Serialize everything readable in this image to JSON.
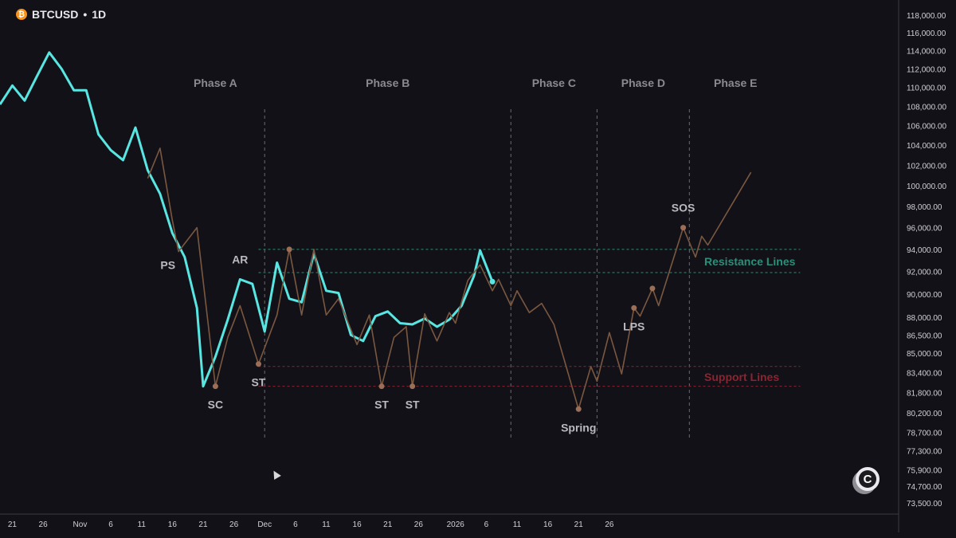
{
  "header": {
    "symbol": "BTCUSD",
    "separator": "•",
    "interval": "1D",
    "coin_icon": "bitcoin-icon"
  },
  "colors": {
    "background": "#131118",
    "price_line": "#58e6e2",
    "schematic": "#7a5840",
    "event_dot": "#9b6e55",
    "phase_label": "#8a8a90",
    "event_label": "#b9b9bf",
    "resistance": "#2a8f78",
    "support": "#8c2430",
    "axis_text": "#d0d0d6",
    "divider": "#6a6a70"
  },
  "chart_data": {
    "type": "line",
    "y_axis_ticks": [
      "118,000.00",
      "116,000.00",
      "114,000.00",
      "112,000.00",
      "110,000.00",
      "108,000.00",
      "106,000.00",
      "104,000.00",
      "102,000.00",
      "100,000.00",
      "98,000.00",
      "96,000.00",
      "94,000.00",
      "92,000.00",
      "90,000.00",
      "88,000.00",
      "86,500.00",
      "85,000.00",
      "83,400.00",
      "81,800.00",
      "80,200.00",
      "78,700.00",
      "77,300.00",
      "75,900.00",
      "74,700.00",
      "73,500.00"
    ],
    "y_scale": "log",
    "ylim": [
      72700,
      119000
    ],
    "x_axis_ticks": [
      "21",
      "26",
      "Nov",
      "6",
      "11",
      "16",
      "21",
      "26",
      "Dec",
      "6",
      "11",
      "16",
      "21",
      "26",
      "2026",
      "6",
      "11",
      "16",
      "21",
      "26"
    ],
    "x_axis_dates": [
      "2025-10-21",
      "2025-10-26",
      "2025-11-01",
      "2025-11-06",
      "2025-11-11",
      "2025-11-16",
      "2025-11-21",
      "2025-11-26",
      "2025-12-01",
      "2025-12-06",
      "2025-12-11",
      "2025-12-16",
      "2025-12-21",
      "2025-12-26",
      "2026-01-01",
      "2026-01-06",
      "2026-01-11",
      "2026-01-16",
      "2026-01-21",
      "2026-01-26"
    ],
    "xlim": [
      "2025-10-19",
      "2026-03-14"
    ],
    "series": [
      {
        "kind": "price",
        "points": [
          [
            "2025-10-19",
            108200
          ],
          [
            "2025-10-21",
            110200
          ],
          [
            "2025-10-23",
            108600
          ],
          [
            "2025-10-25",
            111200
          ],
          [
            "2025-10-27",
            113800
          ],
          [
            "2025-10-29",
            112000
          ],
          [
            "2025-10-31",
            109700
          ],
          [
            "2025-11-02",
            109700
          ],
          [
            "2025-11-04",
            105100
          ],
          [
            "2025-11-06",
            103500
          ],
          [
            "2025-11-08",
            102500
          ],
          [
            "2025-11-10",
            105800
          ],
          [
            "2025-11-12",
            101500
          ],
          [
            "2025-11-14",
            99200
          ],
          [
            "2025-11-16",
            95500
          ],
          [
            "2025-11-18",
            93300
          ],
          [
            "2025-11-20",
            88800
          ],
          [
            "2025-11-21",
            82300
          ],
          [
            "2025-11-23",
            84700
          ],
          [
            "2025-11-25",
            87800
          ],
          [
            "2025-11-27",
            91300
          ],
          [
            "2025-11-29",
            90900
          ],
          [
            "2025-12-01",
            86800
          ],
          [
            "2025-12-03",
            92800
          ],
          [
            "2025-12-05",
            89600
          ],
          [
            "2025-12-07",
            89300
          ],
          [
            "2025-12-09",
            93600
          ],
          [
            "2025-12-11",
            90300
          ],
          [
            "2025-12-13",
            90100
          ],
          [
            "2025-12-15",
            86500
          ],
          [
            "2025-12-17",
            86000
          ],
          [
            "2025-12-19",
            88100
          ],
          [
            "2025-12-21",
            88500
          ],
          [
            "2025-12-23",
            87500
          ],
          [
            "2025-12-25",
            87400
          ],
          [
            "2025-12-27",
            87900
          ],
          [
            "2025-12-29",
            87200
          ],
          [
            "2025-12-31",
            87800
          ],
          [
            "2026-01-02",
            89000
          ],
          [
            "2026-01-04",
            91600
          ],
          [
            "2026-01-05",
            93900
          ],
          [
            "2026-01-07",
            91100
          ]
        ]
      },
      {
        "kind": "schematic",
        "points": [
          [
            "2025-11-12",
            100700
          ],
          [
            "2025-11-14",
            103700
          ],
          [
            "2025-11-16",
            96700
          ],
          [
            "2025-11-17",
            93800
          ],
          [
            "2025-11-20",
            96000
          ],
          [
            "2025-11-23",
            82300
          ],
          [
            "2025-11-25",
            86300
          ],
          [
            "2025-11-27",
            89000
          ],
          [
            "2025-11-30",
            84100
          ],
          [
            "2025-12-03",
            88200
          ],
          [
            "2025-12-05",
            94000
          ],
          [
            "2025-12-07",
            88200
          ],
          [
            "2025-12-09",
            94000
          ],
          [
            "2025-12-11",
            88200
          ],
          [
            "2025-12-13",
            89600
          ],
          [
            "2025-12-16",
            85700
          ],
          [
            "2025-12-18",
            88200
          ],
          [
            "2025-12-20",
            82300
          ],
          [
            "2025-12-22",
            86300
          ],
          [
            "2025-12-24",
            87200
          ],
          [
            "2025-12-25",
            82300
          ],
          [
            "2025-12-27",
            88300
          ],
          [
            "2025-12-29",
            86000
          ],
          [
            "2025-12-31",
            88400
          ],
          [
            "2026-01-01",
            87500
          ],
          [
            "2026-01-03",
            91200
          ],
          [
            "2026-01-05",
            92600
          ],
          [
            "2026-01-07",
            90300
          ],
          [
            "2026-01-08",
            91300
          ],
          [
            "2026-01-10",
            89000
          ],
          [
            "2026-01-11",
            90300
          ],
          [
            "2026-01-13",
            88400
          ],
          [
            "2026-01-15",
            89200
          ],
          [
            "2026-01-17",
            87400
          ],
          [
            "2026-01-21",
            80500
          ],
          [
            "2026-01-23",
            83900
          ],
          [
            "2026-01-24",
            82700
          ],
          [
            "2026-01-26",
            86700
          ],
          [
            "2026-01-28",
            83300
          ],
          [
            "2026-01-30",
            88800
          ],
          [
            "2026-01-31",
            88100
          ],
          [
            "2026-02-02",
            90500
          ],
          [
            "2026-02-03",
            89000
          ],
          [
            "2026-02-07",
            96000
          ],
          [
            "2026-02-09",
            93300
          ],
          [
            "2026-02-10",
            95200
          ],
          [
            "2026-02-11",
            94400
          ],
          [
            "2026-02-18",
            101300
          ]
        ]
      }
    ],
    "events": [
      {
        "label": "PS",
        "date": "2025-11-17",
        "value": 93800,
        "dot": false,
        "label_pos": "left"
      },
      {
        "label": "SC",
        "date": "2025-11-23",
        "value": 82300,
        "dot": true,
        "label_pos": "below"
      },
      {
        "label": "AR",
        "date": "2025-11-27",
        "value": 91300,
        "dot": false,
        "label_pos": "above"
      },
      {
        "label": "ST",
        "date": "2025-11-30",
        "value": 84100,
        "dot": true,
        "label_pos": "below"
      },
      {
        "label": "",
        "date": "2025-12-05",
        "value": 94000,
        "dot": true,
        "label_pos": "none"
      },
      {
        "label": "ST",
        "date": "2025-12-20",
        "value": 82300,
        "dot": true,
        "label_pos": "below"
      },
      {
        "label": "ST",
        "date": "2025-12-25",
        "value": 82300,
        "dot": true,
        "label_pos": "below"
      },
      {
        "label": "Spring",
        "date": "2026-01-21",
        "value": 80500,
        "dot": true,
        "label_pos": "below"
      },
      {
        "label": "LPS",
        "date": "2026-01-30",
        "value": 88800,
        "dot": true,
        "label_pos": "below"
      },
      {
        "label": "",
        "date": "2026-02-02",
        "value": 90500,
        "dot": true,
        "label_pos": "none"
      },
      {
        "label": "SOS",
        "date": "2026-02-07",
        "value": 96000,
        "dot": true,
        "label_pos": "above"
      }
    ],
    "phases": [
      {
        "label": "Phase A",
        "start": "2025-11-15",
        "end": "2025-12-01"
      },
      {
        "label": "Phase B",
        "start": "2025-12-01",
        "end": "2026-01-10"
      },
      {
        "label": "Phase C",
        "start": "2026-01-10",
        "end": "2026-01-24"
      },
      {
        "label": "Phase D",
        "start": "2026-01-24",
        "end": "2026-02-08"
      },
      {
        "label": "Phase E",
        "start": "2026-02-08",
        "end": "2026-02-23"
      }
    ],
    "phase_dividers": [
      "2025-12-01",
      "2026-01-10",
      "2026-01-24",
      "2026-02-08"
    ],
    "resistance_lines": [
      94000,
      91900
    ],
    "support_lines": [
      83900,
      82300
    ],
    "zone_labels": {
      "resistance": "Resistance Lines",
      "support": "Support Lines"
    }
  }
}
